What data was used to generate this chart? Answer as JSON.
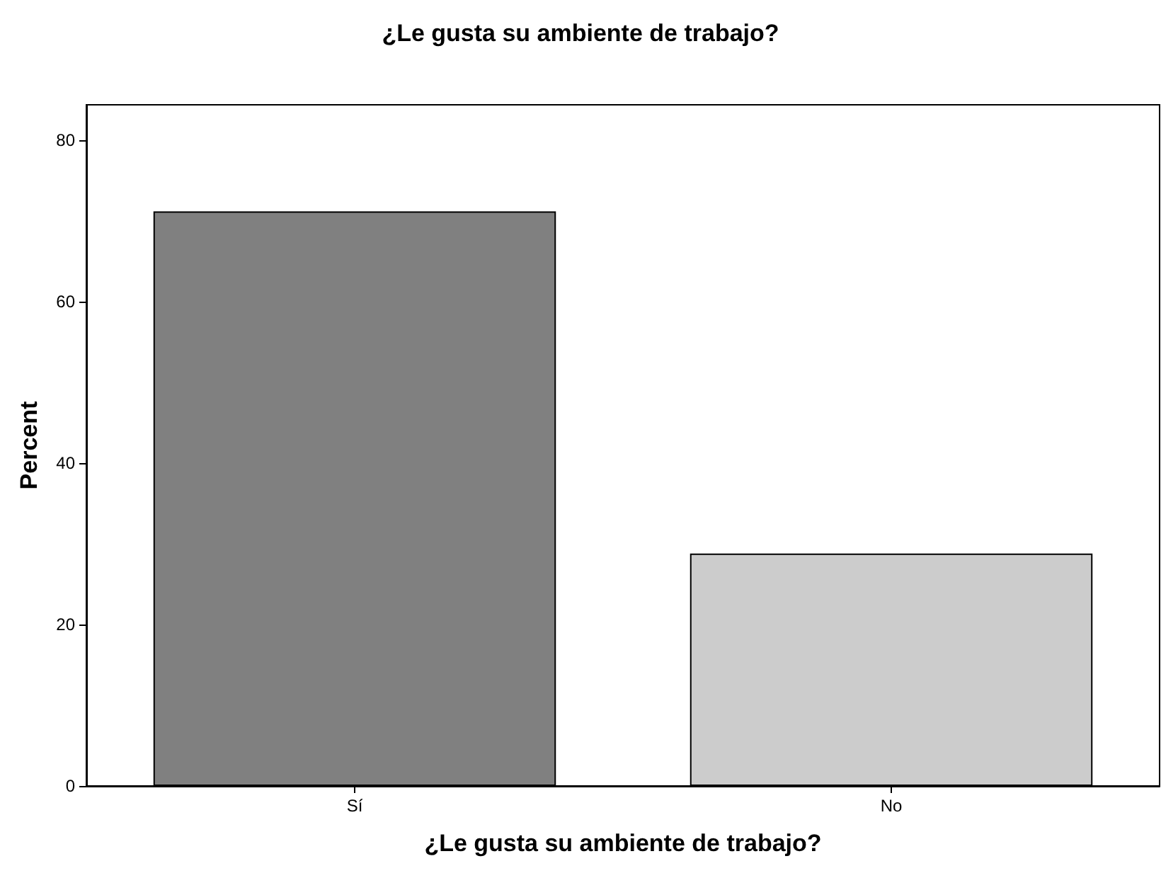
{
  "chart_data": {
    "type": "bar",
    "title": "¿Le gusta su ambiente de trabajo?",
    "xlabel": "¿Le gusta su ambiente de trabajo?",
    "ylabel": "Percent",
    "categories": [
      "Sí",
      "No"
    ],
    "values": [
      71.2,
      28.8
    ],
    "colors": [
      "#808080",
      "#cccccc"
    ],
    "ylim": [
      0,
      84.4
    ],
    "yticks": [
      0,
      20,
      40,
      60,
      80
    ]
  }
}
